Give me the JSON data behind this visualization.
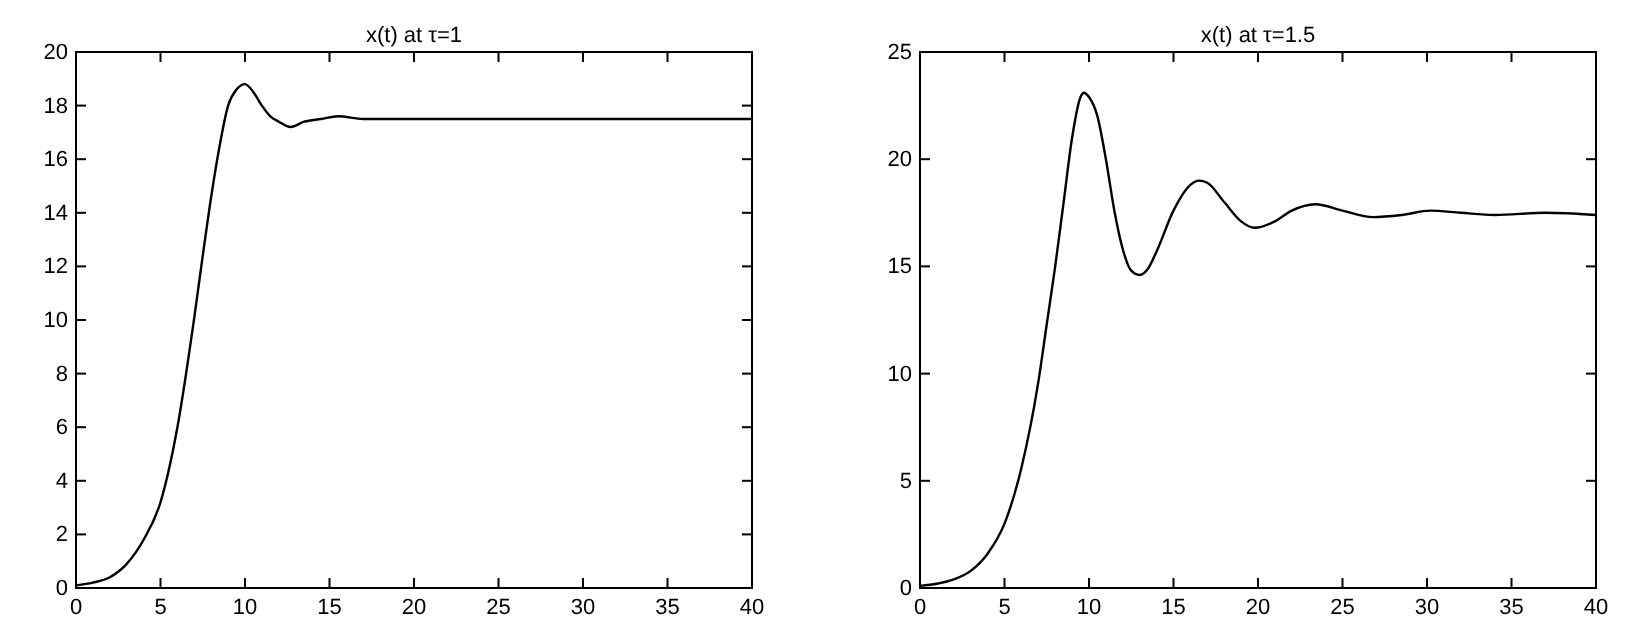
{
  "chart_data": [
    {
      "type": "line",
      "title": "x(t) at τ=1",
      "xlim": [
        0,
        40
      ],
      "ylim": [
        0,
        20
      ],
      "xticks": [
        0,
        5,
        10,
        15,
        20,
        25,
        30,
        35,
        40
      ],
      "yticks": [
        0,
        2,
        4,
        6,
        8,
        10,
        12,
        14,
        16,
        18,
        20
      ],
      "grid": false,
      "marker": "none",
      "line_style": "solid",
      "series": [
        {
          "color": "#000000",
          "x": [
            0,
            1,
            2,
            3,
            4,
            5,
            6,
            7,
            7.5,
            8,
            8.5,
            9,
            9.5,
            10,
            10.5,
            11,
            11.5,
            12,
            12.7,
            13.5,
            14.5,
            15.5,
            17,
            18,
            20,
            25,
            30,
            35,
            40
          ],
          "values": [
            0.1,
            0.2,
            0.4,
            0.9,
            1.8,
            3.2,
            6.0,
            10.1,
            12.4,
            14.6,
            16.5,
            18.0,
            18.6,
            18.8,
            18.5,
            18.0,
            17.6,
            17.4,
            17.2,
            17.4,
            17.5,
            17.6,
            17.5,
            17.5,
            17.5,
            17.5,
            17.5,
            17.5,
            17.5
          ]
        }
      ]
    },
    {
      "type": "line",
      "title": "x(t) at τ=1.5",
      "xlim": [
        0,
        40
      ],
      "ylim": [
        0,
        25
      ],
      "xticks": [
        0,
        5,
        10,
        15,
        20,
        25,
        30,
        35,
        40
      ],
      "yticks": [
        0,
        5,
        10,
        15,
        20,
        25
      ],
      "grid": false,
      "marker": "none",
      "line_style": "solid",
      "series": [
        {
          "color": "#000000",
          "x": [
            0,
            1,
            2,
            3,
            4,
            5,
            6,
            7,
            7.5,
            8,
            8.5,
            9,
            9.5,
            9.7,
            10,
            10.5,
            11,
            11.5,
            12,
            12.5,
            13,
            13.5,
            14,
            15,
            16,
            16.5,
            17,
            18,
            19,
            19.8,
            21,
            22,
            23.4,
            25,
            26.8,
            28.5,
            30.2,
            32,
            34,
            37,
            40
          ],
          "values": [
            0.1,
            0.2,
            0.4,
            0.8,
            1.6,
            3.0,
            5.6,
            9.6,
            12.3,
            15.0,
            18.0,
            21.0,
            22.9,
            23.1,
            22.9,
            22.0,
            20.0,
            17.6,
            15.8,
            14.8,
            14.6,
            14.9,
            15.7,
            17.6,
            18.8,
            19.0,
            18.9,
            18.0,
            17.1,
            16.8,
            17.1,
            17.6,
            17.9,
            17.6,
            17.3,
            17.4,
            17.6,
            17.5,
            17.4,
            17.5,
            17.4
          ]
        }
      ]
    }
  ]
}
